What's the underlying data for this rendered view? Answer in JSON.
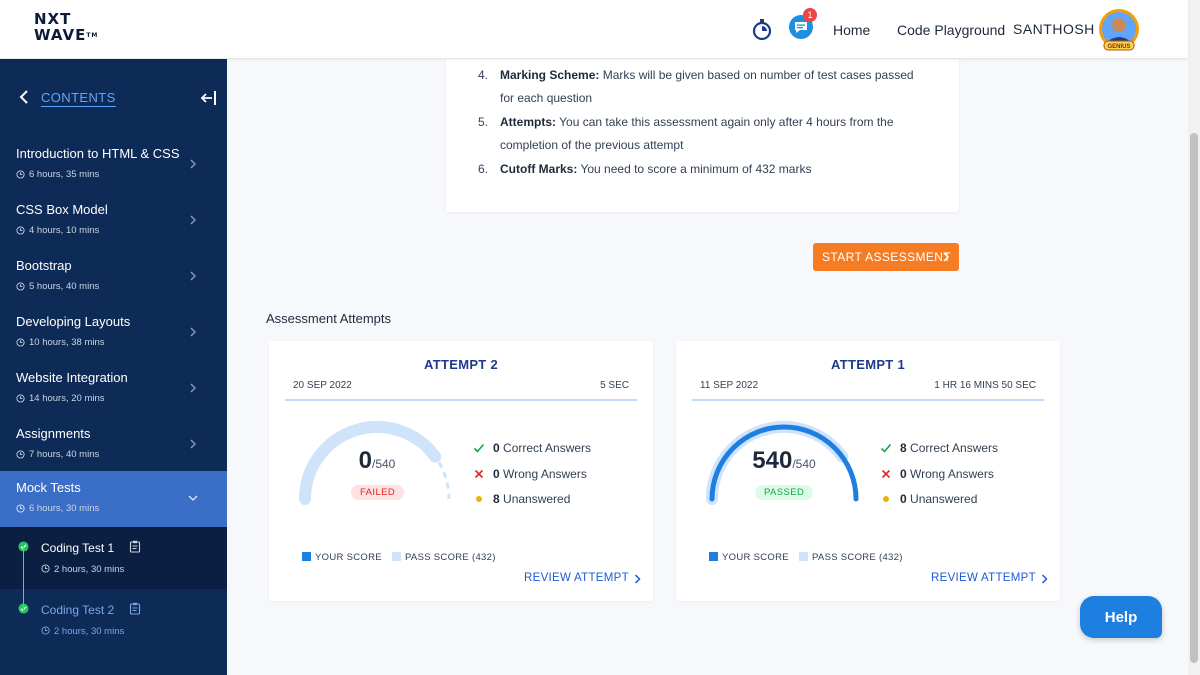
{
  "header": {
    "logo_line1": "NXT",
    "logo_line2": "WAVE",
    "logo_tm": "TM",
    "notification_count": "1",
    "nav_home": "Home",
    "nav_code_playground": "Code Playground",
    "user_name": "SANTHOSH",
    "avatar_badge": "GENIUS"
  },
  "sidebar": {
    "title": "CONTENTS",
    "items": [
      {
        "label": "Introduction to HTML & CSS",
        "duration": "6 hours, 35 mins"
      },
      {
        "label": "CSS Box Model",
        "duration": "4 hours, 10 mins"
      },
      {
        "label": "Bootstrap",
        "duration": "5 hours, 40 mins"
      },
      {
        "label": "Developing Layouts",
        "duration": "10 hours, 38 mins"
      },
      {
        "label": "Website Integration",
        "duration": "14 hours, 20 mins"
      },
      {
        "label": "Assignments",
        "duration": "7 hours, 40 mins"
      },
      {
        "label": "Mock Tests",
        "duration": "6 hours, 30 mins"
      }
    ],
    "sub_items": [
      {
        "label": "Coding Test 1",
        "duration": "2 hours, 30 mins"
      },
      {
        "label": "Coding Test 2",
        "duration": "2 hours, 30 mins"
      }
    ]
  },
  "instructions": [
    {
      "num": "4.",
      "bold": "Marking Scheme:",
      "text": " Marks will be given based on number of test cases passed for each question"
    },
    {
      "num": "5.",
      "bold": "Attempts:",
      "text": " You can take this assessment again only after 4 hours from the completion of the previous attempt"
    },
    {
      "num": "6.",
      "bold": "Cutoff Marks:",
      "text": " You need to score a minimum of 432 marks"
    }
  ],
  "start_button": "START ASSESSMENT",
  "attempts_heading": "Assessment Attempts",
  "attempts": [
    {
      "title": "ATTEMPT 2",
      "date": "20 SEP 2022",
      "duration": "5 SEC",
      "score": "0",
      "total": "/540",
      "score_fraction": 0,
      "status": "FAILED",
      "correct_count": "0",
      "correct_label": "Correct Answers",
      "wrong_count": "0",
      "wrong_label": "Wrong Answers",
      "unanswered_count": "8",
      "unanswered_label": "Unanswered",
      "legend_your": "YOUR SCORE",
      "legend_pass": "PASS SCORE (432)",
      "review": "REVIEW ATTEMPT"
    },
    {
      "title": "ATTEMPT 1",
      "date": "11 SEP 2022",
      "duration": "1 HR 16 MINS 50 SEC",
      "score": "540",
      "total": "/540",
      "score_fraction": 1,
      "status": "PASSED",
      "correct_count": "8",
      "correct_label": "Correct Answers",
      "wrong_count": "0",
      "wrong_label": "Wrong Answers",
      "unanswered_count": "0",
      "unanswered_label": "Unanswered",
      "legend_your": "YOUR SCORE",
      "legend_pass": "PASS SCORE (432)",
      "review": "REVIEW ATTEMPT"
    }
  ],
  "help_button": "Help",
  "colors": {
    "sidebar_bg": "#0e2a57",
    "sidebar_active": "#3b6fc7",
    "accent_orange": "#f57c22",
    "gauge_score": "#1e7fe0",
    "gauge_pass": "#cfe4fb",
    "pass_green": "#16a34a",
    "fail_red": "#dc2626"
  }
}
